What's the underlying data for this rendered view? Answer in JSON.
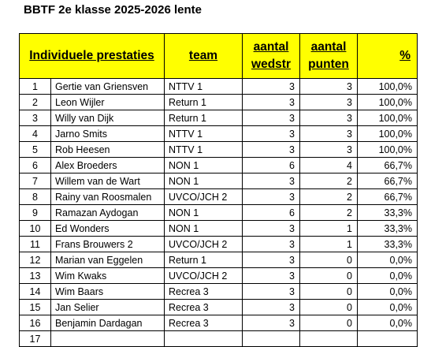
{
  "title": "BBTF 2e klasse 2025-2026 lente",
  "table": {
    "headers": {
      "individual": "Individuele prestaties",
      "team": "team",
      "matches_line1": "aantal",
      "matches_line2": "wedstr",
      "points_line1": "aantal",
      "points_line2": "punten",
      "pct": "%"
    },
    "rows": [
      {
        "rank": "1",
        "name": "Gertie van Griensven",
        "team": "NTTV 1",
        "matches": "3",
        "points": "3",
        "pct": "100,0%"
      },
      {
        "rank": "2",
        "name": "Leon Wijler",
        "team": "Return 1",
        "matches": "3",
        "points": "3",
        "pct": "100,0%"
      },
      {
        "rank": "3",
        "name": "Willy van Dijk",
        "team": "Return 1",
        "matches": "3",
        "points": "3",
        "pct": "100,0%"
      },
      {
        "rank": "4",
        "name": "Jarno Smits",
        "team": "NTTV 1",
        "matches": "3",
        "points": "3",
        "pct": "100,0%"
      },
      {
        "rank": "5",
        "name": "Rob Heesen",
        "team": "NTTV 1",
        "matches": "3",
        "points": "3",
        "pct": "100,0%"
      },
      {
        "rank": "6",
        "name": "Alex Broeders",
        "team": "NON 1",
        "matches": "6",
        "points": "4",
        "pct": "66,7%"
      },
      {
        "rank": "7",
        "name": "Willem van de Wart",
        "team": "NON 1",
        "matches": "3",
        "points": "2",
        "pct": "66,7%"
      },
      {
        "rank": "8",
        "name": "Rainy van Roosmalen",
        "team": "UVCO/JCH 2",
        "matches": "3",
        "points": "2",
        "pct": "66,7%"
      },
      {
        "rank": "9",
        "name": "Ramazan Aydogan",
        "team": "NON 1",
        "matches": "6",
        "points": "2",
        "pct": "33,3%"
      },
      {
        "rank": "10",
        "name": "Ed Wonders",
        "team": "NON 1",
        "matches": "3",
        "points": "1",
        "pct": "33,3%"
      },
      {
        "rank": "11",
        "name": "Frans Brouwers 2",
        "team": "UVCO/JCH 2",
        "matches": "3",
        "points": "1",
        "pct": "33,3%"
      },
      {
        "rank": "12",
        "name": "Marian van Eggelen",
        "team": "Return 1",
        "matches": "3",
        "points": "0",
        "pct": "0,0%"
      },
      {
        "rank": "13",
        "name": "Wim Kwaks",
        "team": "UVCO/JCH 2",
        "matches": "3",
        "points": "0",
        "pct": "0,0%"
      },
      {
        "rank": "14",
        "name": "Wim Baars",
        "team": "Recrea 3",
        "matches": "3",
        "points": "0",
        "pct": "0,0%"
      },
      {
        "rank": "15",
        "name": "Jan Selier",
        "team": "Recrea 3",
        "matches": "3",
        "points": "0",
        "pct": "0,0%"
      },
      {
        "rank": "16",
        "name": "Benjamin Dardagan",
        "team": "Recrea 3",
        "matches": "3",
        "points": "0",
        "pct": "0,0%"
      },
      {
        "rank": "17",
        "name": "",
        "team": "",
        "matches": "",
        "points": "",
        "pct": ""
      }
    ]
  },
  "colors": {
    "header_background": "#ffff00",
    "grid_lines": "#000000"
  }
}
